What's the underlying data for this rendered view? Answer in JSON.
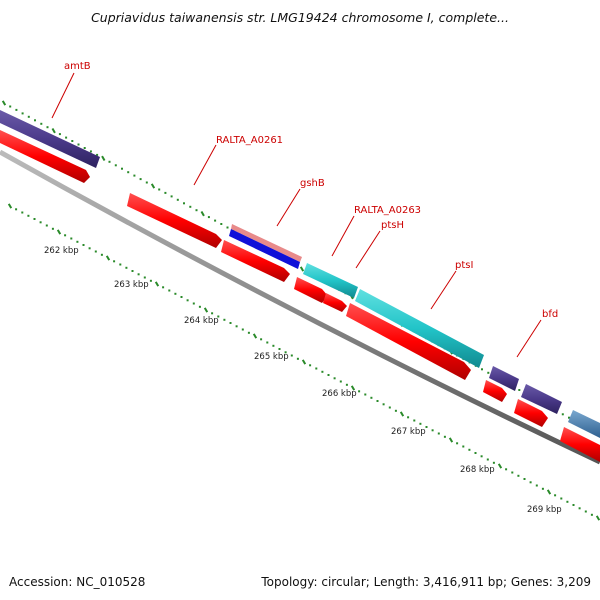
{
  "title": "Cupriavidus taiwanensis str. LMG19424 chromosome I, complete...",
  "footer": {
    "accession": "Accession: NC_010528",
    "summary": "Topology: circular; Length: 3,416,911 bp; Genes: 3,209"
  },
  "colors": {
    "cds_forward": "#ff0000",
    "cds_forward_alt": "#1e90d0",
    "gene_purple": "#4b3a8a",
    "gene_cyan": "#22c4c8",
    "gene_steel": "#4a7fb0",
    "gene_blue": "#1010d8",
    "gene_pink": "#e88a8a",
    "backbone": "#888888",
    "ticks": "#2a8a2a",
    "label": "#cc0000"
  },
  "gene_labels": [
    "amtB",
    "RALTA_A0261",
    "gshB",
    "RALTA_A0263",
    "ptsH",
    "ptsI",
    "bfd"
  ],
  "tick_labels": [
    "262 kbp",
    "263 kbp",
    "264 kbp",
    "265 kbp",
    "266 kbp",
    "267 kbp",
    "268 kbp",
    "269 kbp"
  ]
}
